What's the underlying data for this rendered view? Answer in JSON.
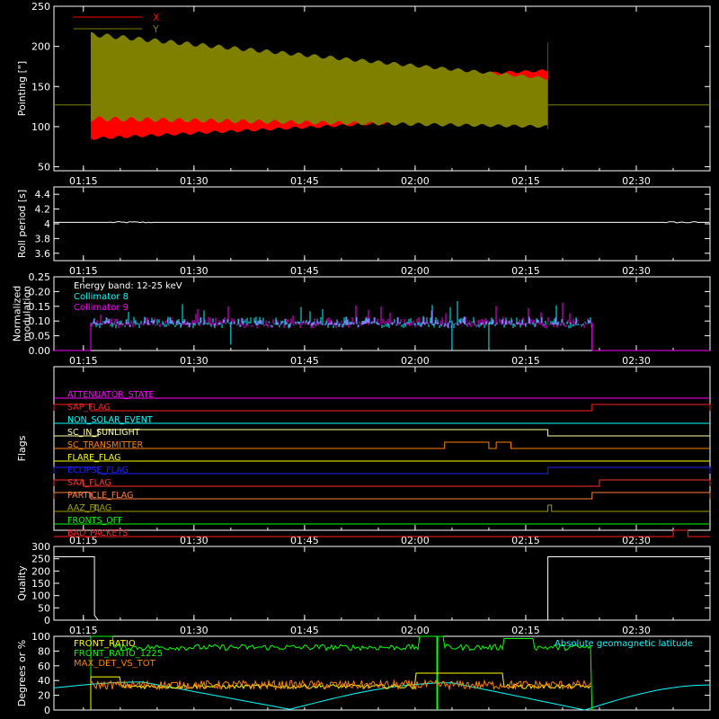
{
  "chart_data": [
    {
      "id": "pointing",
      "type": "area",
      "ylabel": "Pointing [\"]",
      "ylim": [
        45,
        250
      ],
      "yticks": [
        50,
        100,
        150,
        200,
        250
      ],
      "xticks": [
        "01:15",
        "01:30",
        "01:45",
        "02:00",
        "02:15",
        "02:30"
      ],
      "time_range": [
        "01:11",
        "02:40"
      ],
      "active_interval": [
        "01:16",
        "02:18"
      ],
      "baseline": 127,
      "spike_high": 205,
      "spike_low": 97,
      "series": [
        {
          "name": "X",
          "color": "#ff0000",
          "envelope_start": [
            85,
            145
          ],
          "envelope_end": [
            115,
            170
          ]
        },
        {
          "name": "Y",
          "color": "#808000",
          "envelope_start": [
            110,
            215
          ],
          "envelope_end": [
            100,
            160
          ]
        }
      ]
    },
    {
      "id": "roll-period",
      "type": "line",
      "ylabel": "Roll period [s]",
      "ylim": [
        3.5,
        4.5
      ],
      "yticks": [
        3.6,
        3.8,
        4.0,
        4.2,
        4.4
      ],
      "xticks": [
        "01:15",
        "01:30",
        "01:45",
        "02:00",
        "02:15",
        "02:30"
      ],
      "value": 4.02,
      "color": "#ffffff"
    },
    {
      "id": "modulation",
      "type": "bar",
      "ylabel_lines": [
        "Normalized",
        "modulation"
      ],
      "ylim": [
        0,
        0.25
      ],
      "yticks": [
        "0.00",
        "0.05",
        "0.10",
        "0.15",
        "0.20",
        "0.25"
      ],
      "xticks": [
        "01:15",
        "01:30",
        "01:45",
        "02:00",
        "02:15",
        "02:30"
      ],
      "annotation": "Energy band: 12-25 keV",
      "active_interval": [
        "01:16",
        "02:24"
      ],
      "level": 0.095,
      "series": [
        {
          "name": "Collimator 8",
          "color": "#00ffff"
        },
        {
          "name": "Collimator 9",
          "color": "#ff00ff"
        }
      ]
    },
    {
      "id": "flags",
      "type": "line",
      "ylabel": "Flags",
      "xticks": [
        "01:15",
        "01:30",
        "01:45",
        "02:00",
        "02:15",
        "02:30"
      ],
      "flags": [
        {
          "name": "ATTENUATOR_STATE",
          "color": "#ff00ff",
          "on": []
        },
        {
          "name": "SAP_FLAG",
          "color": "#ff2020",
          "on": [
            [
              "01:11",
              "01:16"
            ],
            [
              "02:24",
              "02:40"
            ]
          ]
        },
        {
          "name": "NON_SOLAR_EVENT",
          "color": "#00ffff",
          "on": []
        },
        {
          "name": "SC_IN_SUNLIGHT",
          "color": "#ffffa0",
          "on": [
            [
              "01:17",
              "02:18"
            ]
          ]
        },
        {
          "name": "SC_TRANSMITTER",
          "color": "#ff8000",
          "on": [
            [
              "02:04",
              "02:10"
            ],
            [
              "02:11",
              "02:13"
            ]
          ]
        },
        {
          "name": "FLARE_FLAG",
          "color": "#ffff00",
          "on": []
        },
        {
          "name": "ECLIPSE_FLAG",
          "color": "#2020ff",
          "on": [
            [
              "01:11",
              "01:17"
            ],
            [
              "02:18",
              "02:40"
            ]
          ]
        },
        {
          "name": "SAA_FLAG",
          "color": "#ff3030",
          "on": [
            [
              "01:11",
              "01:15"
            ],
            [
              "02:25",
              "02:40"
            ]
          ]
        },
        {
          "name": "PARTICLE_FLAG",
          "color": "#ff8040",
          "on": [
            [
              "01:11",
              "01:16"
            ],
            [
              "02:24",
              "02:40"
            ]
          ]
        },
        {
          "name": "AAZ_FLAG",
          "color": "#a0a000",
          "on": [
            [
              "01:16.5",
              "01:17"
            ],
            [
              "02:18",
              "02:18.5"
            ]
          ]
        },
        {
          "name": "FRONTS_OFF",
          "color": "#00ff00",
          "on": []
        },
        {
          "name": "BAD_PACKETS",
          "color": "#ff2020",
          "on": [
            [
              "02:35",
              "02:37"
            ]
          ]
        }
      ]
    },
    {
      "id": "quality",
      "type": "line",
      "ylabel": "Quality",
      "ylim": [
        0,
        300
      ],
      "yticks": [
        0,
        50,
        100,
        150,
        200,
        250,
        300
      ],
      "xticks": [
        "01:15",
        "01:30",
        "01:45",
        "02:00",
        "02:15",
        "02:30"
      ],
      "points": [
        [
          "01:11",
          258
        ],
        [
          "01:16.5",
          258
        ],
        [
          "01:16.5",
          20
        ],
        [
          "01:17",
          0
        ],
        [
          "02:18",
          0
        ],
        [
          "02:18",
          258
        ],
        [
          "02:40",
          258
        ]
      ],
      "color": "#ffffff"
    },
    {
      "id": "front-ratio",
      "type": "line",
      "ylabel": "Degrees or %",
      "ylim": [
        0,
        100
      ],
      "yticks": [
        0,
        20,
        40,
        60,
        80,
        100
      ],
      "series": [
        {
          "name": "FRONT_RATIO",
          "color": "#ffff00"
        },
        {
          "name": "FRONT_RATIO_1225",
          "color": "#00ff00"
        },
        {
          "name": "MAX_DET_VS_TOT",
          "color": "#ff8000"
        },
        {
          "name": "Absolute geomagnetic latitude",
          "color": "#00ffff"
        }
      ]
    }
  ]
}
